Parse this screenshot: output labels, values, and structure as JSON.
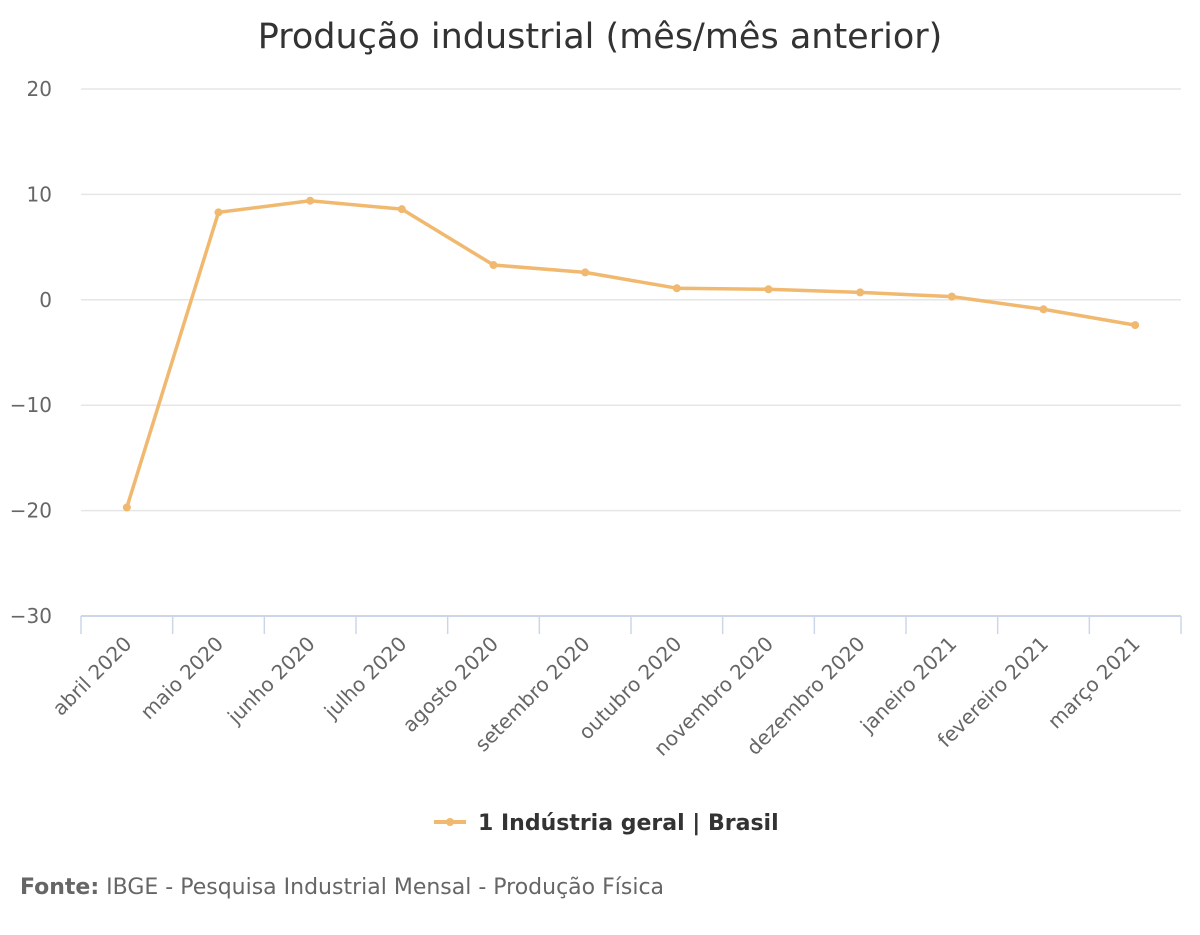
{
  "chart_data": {
    "type": "line",
    "title": "Produção industrial (mês/mês anterior)",
    "categories": [
      "abril 2020",
      "maio 2020",
      "junho 2020",
      "julho 2020",
      "agosto 2020",
      "setembro 2020",
      "outubro 2020",
      "novembro 2020",
      "dezembro 2020",
      "janeiro 2021",
      "fevereiro 2021",
      "março 2021"
    ],
    "series": [
      {
        "name": "1 Indústria geral | Brasil",
        "values": [
          -19.7,
          8.3,
          9.4,
          8.6,
          3.3,
          2.6,
          1.1,
          1.0,
          0.7,
          0.3,
          -0.9,
          -2.4
        ],
        "color": "#f0b96f"
      }
    ],
    "yticks": [
      "20",
      "10",
      "0",
      "−10",
      "−20",
      "−30"
    ],
    "ytick_values": [
      20,
      10,
      0,
      -10,
      -20,
      -30
    ],
    "ylim": [
      -30,
      20
    ],
    "grid": true,
    "legend_position": "bottom",
    "grid_color": "#e6e6e6",
    "axis_color": "#ccd6eb"
  },
  "source": {
    "label": "Fonte:",
    "text": "IBGE - Pesquisa Industrial Mensal - Produção Física"
  }
}
